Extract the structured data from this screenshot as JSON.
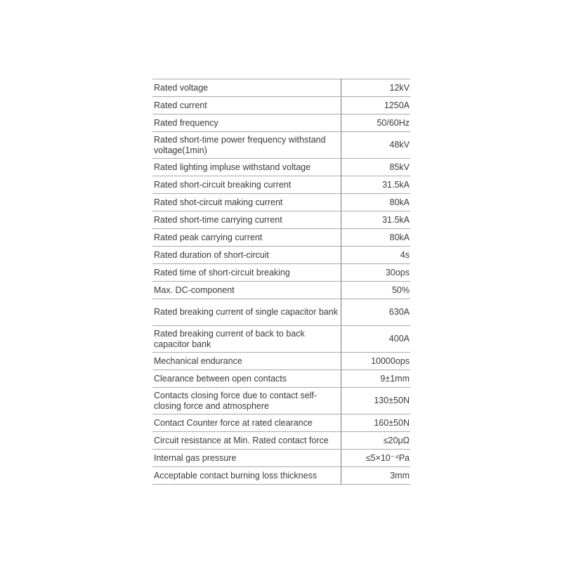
{
  "specs": [
    {
      "parameter": "Rated voltage",
      "value": "12kV"
    },
    {
      "parameter": "Rated current",
      "value": "1250A"
    },
    {
      "parameter": "Rated frequency",
      "value": "50/60Hz"
    },
    {
      "parameter": "Rated short-time power frequency withstand voltage(1min)",
      "value": "48kV"
    },
    {
      "parameter": "Rated lighting impluse withstand voltage",
      "value": "85kV"
    },
    {
      "parameter": "Rated short-circuit breaking current",
      "value": "31.5kA"
    },
    {
      "parameter": "Rated shot-circuit making current",
      "value": "80kA"
    },
    {
      "parameter": "Rated short-time carrying current",
      "value": "31.5kA"
    },
    {
      "parameter": "Rated peak carrying current",
      "value": "80kA"
    },
    {
      "parameter": "Rated duration of short-circuit",
      "value": "4s"
    },
    {
      "parameter": "Rated time of short-circuit breaking",
      "value": "30ops"
    },
    {
      "parameter": "Max. DC-component",
      "value": "50%"
    },
    {
      "parameter": "Rated breaking current of single capacitor bank",
      "value": "630A"
    },
    {
      "parameter": "Rated breaking current of back to back capacitor bank",
      "value": "400A"
    },
    {
      "parameter": "Mechanical endurance",
      "value": "10000ops"
    },
    {
      "parameter": "Clearance between open contacts",
      "value": "9±1mm"
    },
    {
      "parameter": "Contacts closing force due to contact self-closing force and atmosphere",
      "value": "130±50N"
    },
    {
      "parameter": "Contact Counter force at rated clearance",
      "value": "160±50N"
    },
    {
      "parameter": "Circuit resistance at Min. Rated contact force",
      "value": "≤20μΩ"
    },
    {
      "parameter": "Internal gas pressure",
      "value": "≤5×10⁻⁴Pa"
    },
    {
      "parameter": "Acceptable contact burning loss thickness",
      "value": "3mm"
    }
  ]
}
